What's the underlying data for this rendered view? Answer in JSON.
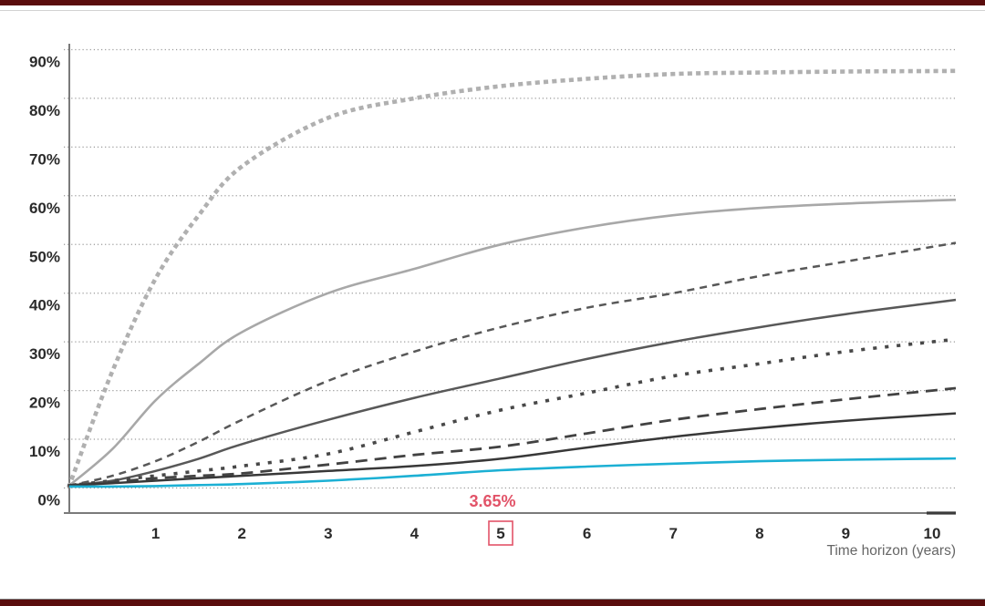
{
  "page": {
    "background": "#ffffff",
    "top_bar_color": "#5a0d0d",
    "bottom_bar_color": "#5a0d0d"
  },
  "chart_data": {
    "type": "line",
    "title": "",
    "xlabel": "Time horizon (years)",
    "ylabel": "",
    "xlim": [
      0,
      10.3
    ],
    "ylim": [
      0,
      95
    ],
    "grid": "horizontal dotted lines every 10%",
    "legend_position": "none",
    "x_ticks": [
      "1",
      "2",
      "3",
      "4",
      "5",
      "6",
      "7",
      "8",
      "9",
      "10"
    ],
    "y_ticks": [
      "0%",
      "10%",
      "20%",
      "30%",
      "40%",
      "50%",
      "60%",
      "70%",
      "80%",
      "90%"
    ],
    "highlighted_x_tick": "5",
    "annotation": {
      "text": "3.65%",
      "x": 5,
      "y": 0,
      "color": "#e25368"
    },
    "x": [
      0,
      0.5,
      1,
      1.5,
      2,
      3,
      4,
      5,
      6,
      7,
      8,
      9,
      10
    ],
    "series": [
      {
        "name": "light-gray-large-dotted",
        "line_style": "dotted",
        "color": "#b0b0b0",
        "width": 4.6,
        "dash": "0.5 8.8",
        "linecap": "square",
        "values": [
          0.5,
          24,
          43,
          56,
          66,
          76,
          80,
          82.5,
          84,
          85,
          85.3,
          85.5,
          85.6
        ]
      },
      {
        "name": "light-gray-solid",
        "line_style": "solid",
        "color": "#a8a8a8",
        "width": 2.6,
        "dash": "",
        "linecap": "butt",
        "values": [
          0.5,
          8,
          18,
          25.5,
          32,
          40,
          45,
          50,
          53.5,
          56,
          57.5,
          58.4,
          59
        ]
      },
      {
        "name": "dark-gray-dashed",
        "line_style": "dashed",
        "color": "#585858",
        "width": 2.5,
        "dash": "8 6",
        "linecap": "butt",
        "values": [
          0.5,
          2.5,
          5.5,
          9.5,
          14,
          22,
          28,
          33,
          37,
          40,
          43.5,
          46.5,
          49.5
        ]
      },
      {
        "name": "dark-gray-solid-upper",
        "line_style": "solid",
        "color": "#585858",
        "width": 2.5,
        "dash": "",
        "linecap": "butt",
        "values": [
          0.5,
          1.5,
          3.5,
          6,
          9,
          14,
          18.5,
          22.5,
          26.5,
          30,
          33,
          35.7,
          38
        ]
      },
      {
        "name": "dark-gray-small-dotted",
        "line_style": "dotted",
        "color": "#484848",
        "width": 3.6,
        "dash": "0.5 12.5",
        "linecap": "square",
        "values": [
          0.5,
          1.5,
          2.5,
          3.5,
          4.5,
          7,
          11.5,
          16,
          19.5,
          23,
          25.5,
          28,
          30
        ]
      },
      {
        "name": "dark-gray-long-dashed",
        "line_style": "long-dashed",
        "color": "#424242",
        "width": 2.8,
        "dash": "13 8",
        "linecap": "butt",
        "values": [
          0.5,
          1.2,
          2,
          2.5,
          3,
          4.8,
          6.8,
          8.5,
          11.2,
          14,
          16.2,
          18.2,
          20
        ]
      },
      {
        "name": "dark-gray-solid-lower",
        "line_style": "solid",
        "color": "#383838",
        "width": 2.5,
        "dash": "",
        "linecap": "butt",
        "values": [
          0.5,
          1,
          1.5,
          2,
          2.5,
          3.5,
          4.5,
          6,
          8.3,
          10.5,
          12.3,
          13.8,
          15
        ]
      },
      {
        "name": "blue-solid",
        "line_style": "solid",
        "color": "#1cb0d4",
        "width": 2.6,
        "dash": "",
        "linecap": "butt",
        "values": [
          0.3,
          0.3,
          0.4,
          0.6,
          0.8,
          1.5,
          2.5,
          3.65,
          4.4,
          5,
          5.5,
          5.8,
          6
        ]
      }
    ]
  }
}
